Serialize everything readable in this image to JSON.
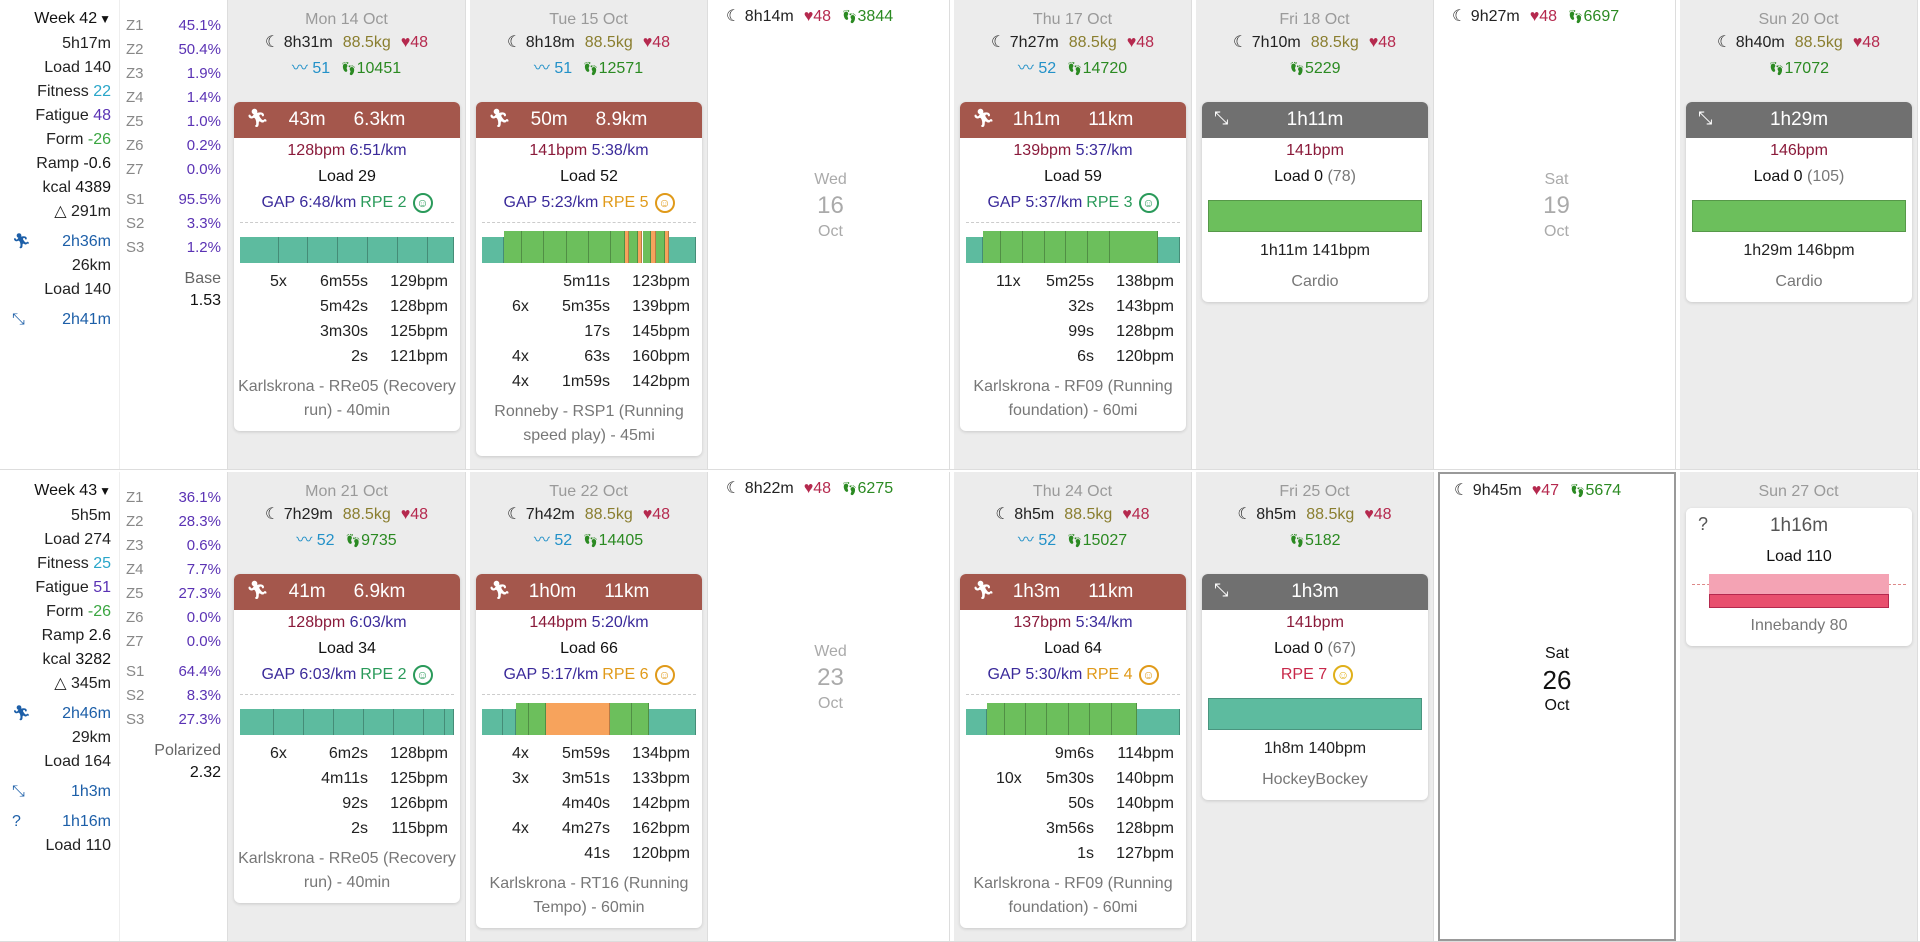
{
  "weeks": [
    {
      "label": "Week 42",
      "time": "5h17m",
      "load": "Load 140",
      "fitness_label": "Fitness",
      "fitness": "22",
      "fatigue_label": "Fatigue",
      "fatigue": "48",
      "form_label": "Form",
      "form": "-26",
      "ramp_label": "Ramp",
      "ramp": "-0.6",
      "kcal_label": "kcal",
      "kcal": "4389",
      "elev": "△ 291m",
      "run_time": "2h36m",
      "run_dist": "26km",
      "run_load": "Load 140",
      "other": [
        {
          "time": "2h41m",
          "load": ""
        }
      ],
      "zones": [
        [
          "Z1",
          "45.1%"
        ],
        [
          "Z2",
          "50.4%"
        ],
        [
          "Z3",
          "1.9%"
        ],
        [
          "Z4",
          "1.4%"
        ],
        [
          "Z5",
          "1.0%"
        ],
        [
          "Z6",
          "0.2%"
        ],
        [
          "Z7",
          "0.0%"
        ]
      ],
      "s": [
        [
          "S1",
          "95.5%"
        ],
        [
          "S2",
          "3.3%"
        ],
        [
          "S3",
          "1.2%"
        ]
      ],
      "model": "Base",
      "model_val": "1.53",
      "days": {
        "mon": {
          "date": "Mon 14 Oct",
          "sleep": "8h31m",
          "kg": "88.5kg",
          "hr": "48",
          "hrv": "51",
          "steps": "10451",
          "card": {
            "time": "43m",
            "dist": "6.3km",
            "hr": "128bpm",
            "pace": "6:51/km",
            "load": "Load 29",
            "gap": "GAP 6:48/km",
            "rpe": "RPE 2",
            "smile": "☺",
            "ints": [
              [
                "5x",
                "6m55s",
                "129bpm"
              ],
              [
                "",
                "5m42s",
                "128bpm"
              ],
              [
                "",
                "3m30s",
                "125bpm"
              ],
              [
                "",
                "2s",
                "121bpm"
              ]
            ],
            "name": "Karlskrona - RRe05 (Recovery run) - 40min"
          }
        },
        "tue": {
          "date": "Tue 15 Oct",
          "sleep": "8h18m",
          "kg": "88.5kg",
          "hr": "48",
          "hrv": "51",
          "steps": "12571",
          "card": {
            "time": "50m",
            "dist": "8.9km",
            "hr": "141bpm",
            "pace": "5:38/km",
            "load": "Load 52",
            "gap": "GAP 5:23/km",
            "rpe": "RPE 5",
            "smile": "☺",
            "ints": [
              [
                "",
                "5m11s",
                "123bpm"
              ],
              [
                "6x",
                "5m35s",
                "139bpm"
              ],
              [
                "",
                "17s",
                "145bpm"
              ],
              [
                "4x",
                "63s",
                "160bpm"
              ],
              [
                "4x",
                "1m59s",
                "142bpm"
              ]
            ],
            "name": "Ronneby - RSP1 (Running speed play) - 45mi"
          }
        },
        "wed": {
          "sleep": "8h14m",
          "hr": "48",
          "steps": "3844",
          "dow": "Wed",
          "num": "16",
          "mon": "Oct"
        },
        "thu": {
          "date": "Thu 17 Oct",
          "sleep": "7h27m",
          "kg": "88.5kg",
          "hr": "48",
          "hrv": "52",
          "steps": "14720",
          "card": {
            "time": "1h1m",
            "dist": "11km",
            "hr": "139bpm",
            "pace": "5:37/km",
            "load": "Load 59",
            "gap": "GAP 5:37/km",
            "rpe": "RPE 3",
            "smile": "☺",
            "ints": [
              [
                "11x",
                "5m25s",
                "138bpm"
              ],
              [
                "",
                "32s",
                "143bpm"
              ],
              [
                "",
                "99s",
                "128bpm"
              ],
              [
                "",
                "6s",
                "120bpm"
              ]
            ],
            "name": "Karlskrona - RF09 (Running foundation) - 60mi"
          }
        },
        "fri": {
          "date": "Fri 18 Oct",
          "sleep": "7h10m",
          "kg": "88.5kg",
          "hr": "48",
          "steps": "5229",
          "card": {
            "time": "1h11m",
            "hr": "141bpm",
            "load": "Load 0",
            "load_sub": "(78)",
            "summary": "1h11m 141bpm",
            "name": "Cardio"
          }
        },
        "sat": {
          "sleep": "9h27m",
          "hr": "48",
          "steps": "6697",
          "dow": "Sat",
          "num": "19",
          "mon": "Oct"
        },
        "sun": {
          "date": "Sun 20 Oct",
          "sleep": "8h40m",
          "kg": "88.5kg",
          "hr": "48",
          "steps": "17072",
          "card": {
            "time": "1h29m",
            "hr": "146bpm",
            "load": "Load 0",
            "load_sub": "(105)",
            "summary": "1h29m 146bpm",
            "name": "Cardio"
          }
        }
      }
    },
    {
      "label": "Week 43",
      "time": "5h5m",
      "load": "Load 274",
      "fitness_label": "Fitness",
      "fitness": "25",
      "fatigue_label": "Fatigue",
      "fatigue": "51",
      "form_label": "Form",
      "form": "-26",
      "ramp_label": "Ramp",
      "ramp": "2.6",
      "kcal_label": "kcal",
      "kcal": "3282",
      "elev": "△ 345m",
      "run_time": "2h46m",
      "run_dist": "29km",
      "run_load": "Load 164",
      "other": [
        {
          "time": "1h3m",
          "load": ""
        },
        {
          "time": "1h16m",
          "load": "Load 110"
        }
      ],
      "zones": [
        [
          "Z1",
          "36.1%"
        ],
        [
          "Z2",
          "28.3%"
        ],
        [
          "Z3",
          "0.6%"
        ],
        [
          "Z4",
          "7.7%"
        ],
        [
          "Z5",
          "27.3%"
        ],
        [
          "Z6",
          "0.0%"
        ],
        [
          "Z7",
          "0.0%"
        ]
      ],
      "s": [
        [
          "S1",
          "64.4%"
        ],
        [
          "S2",
          "8.3%"
        ],
        [
          "S3",
          "27.3%"
        ]
      ],
      "model": "Polarized",
      "model_val": "2.32",
      "days": {
        "mon": {
          "date": "Mon 21 Oct",
          "sleep": "7h29m",
          "kg": "88.5kg",
          "hr": "48",
          "hrv": "52",
          "steps": "9735",
          "card": {
            "time": "41m",
            "dist": "6.9km",
            "hr": "128bpm",
            "pace": "6:03/km",
            "load": "Load 34",
            "gap": "GAP 6:03/km",
            "rpe": "RPE 2",
            "smile": "☺",
            "ints": [
              [
                "6x",
                "6m2s",
                "128bpm"
              ],
              [
                "",
                "4m11s",
                "125bpm"
              ],
              [
                "",
                "92s",
                "126bpm"
              ],
              [
                "",
                "2s",
                "115bpm"
              ]
            ],
            "name": "Karlskrona - RRe05 (Recovery run) - 40min"
          }
        },
        "tue": {
          "date": "Tue 22 Oct",
          "sleep": "7h42m",
          "kg": "88.5kg",
          "hr": "48",
          "hrv": "52",
          "steps": "14405",
          "card": {
            "time": "1h0m",
            "dist": "11km",
            "hr": "144bpm",
            "pace": "5:20/km",
            "load": "Load 66",
            "gap": "GAP 5:17/km",
            "rpe": "RPE 6",
            "smile": "☺",
            "ints": [
              [
                "4x",
                "5m59s",
                "134bpm"
              ],
              [
                "3x",
                "3m51s",
                "133bpm"
              ],
              [
                "",
                "4m40s",
                "142bpm"
              ],
              [
                "4x",
                "4m27s",
                "162bpm"
              ],
              [
                "",
                "41s",
                "120bpm"
              ]
            ],
            "name": "Karlskrona - RT16 (Running Tempo) - 60min"
          }
        },
        "wed": {
          "sleep": "8h22m",
          "hr": "48",
          "steps": "6275",
          "dow": "Wed",
          "num": "23",
          "mon": "Oct"
        },
        "thu": {
          "date": "Thu 24 Oct",
          "sleep": "8h5m",
          "kg": "88.5kg",
          "hr": "48",
          "hrv": "52",
          "steps": "15027",
          "card": {
            "time": "1h3m",
            "dist": "11km",
            "hr": "137bpm",
            "pace": "5:34/km",
            "load": "Load 64",
            "gap": "GAP 5:30/km",
            "rpe": "RPE 4",
            "smile": "☺",
            "ints": [
              [
                "",
                "9m6s",
                "114bpm"
              ],
              [
                "10x",
                "5m30s",
                "140bpm"
              ],
              [
                "",
                "50s",
                "140bpm"
              ],
              [
                "",
                "3m56s",
                "128bpm"
              ],
              [
                "",
                "1s",
                "127bpm"
              ]
            ],
            "name": "Karlskrona - RF09 (Running foundation) - 60mi"
          }
        },
        "fri": {
          "date": "Fri 25 Oct",
          "sleep": "8h5m",
          "kg": "88.5kg",
          "hr": "48",
          "steps": "5182",
          "card": {
            "time": "1h3m",
            "hr": "141bpm",
            "load": "Load 0",
            "load_sub": "(67)",
            "rpe": "RPE 7",
            "smile": "☺",
            "summary": "1h8m 140bpm",
            "name": "HockeyBockey"
          }
        },
        "sat": {
          "sleep": "9h45m",
          "hr": "47",
          "steps": "5674",
          "dow": "Sat",
          "num": "26",
          "mon": "Oct"
        },
        "sun": {
          "date": "Sun 27 Oct",
          "card": {
            "icon": "?",
            "time": "1h16m",
            "load": "Load 110",
            "name": "Innebandy 80"
          }
        }
      }
    }
  ],
  "colors": {
    "run_bar": "#a4574c",
    "gym_bar": "#707070",
    "zone_green": "#6cbf5c",
    "zone_teal": "#5dbb9f",
    "zone_orange": "#f7a35c",
    "heart": "#b5294e",
    "steps": "#2b8a22"
  },
  "icons": {
    "sleep": "moon-icon",
    "heart": "heart-icon",
    "steps": "footsteps-icon",
    "hrv": "hrv-icon",
    "run": "runner-icon",
    "other": "arrows-diagonal-icon",
    "unknown": "question-icon",
    "smile": "smiley-icon",
    "caret": "caret-down-icon"
  }
}
